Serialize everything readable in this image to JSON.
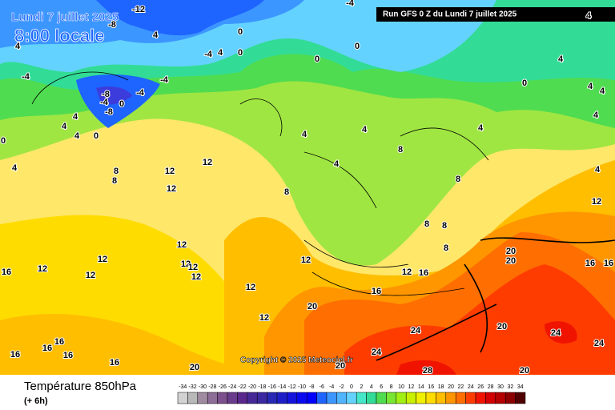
{
  "header": {
    "date": "Lundi 7 juillet 2025",
    "time": "8:00 locale",
    "run": "Run GFS 0 Z du Lundi 7 juillet 2025"
  },
  "copyright": "Copyright © 2025 Meteociel.fr",
  "footer": {
    "title": "Température 850hPa",
    "lead": "(+ 6h)"
  },
  "legend": {
    "values": [
      -34,
      -32,
      -30,
      -28,
      -26,
      -24,
      -22,
      -20,
      -18,
      -16,
      -14,
      -12,
      -10,
      -8,
      -6,
      -4,
      -2,
      0,
      2,
      4,
      6,
      8,
      10,
      12,
      14,
      16,
      18,
      20,
      22,
      24,
      26,
      28,
      30,
      32,
      34
    ],
    "colors": [
      "#d2d2d2",
      "#b9b9b9",
      "#a08ca0",
      "#8c6e96",
      "#7c508c",
      "#6a3c8c",
      "#5a288c",
      "#462896",
      "#3c28a0",
      "#2828b4",
      "#1e1ec8",
      "#1414dc",
      "#0a0af0",
      "#0000ff",
      "#1e64ff",
      "#3c96ff",
      "#50b4ff",
      "#64d2ff",
      "#46e6c8",
      "#32dc96",
      "#50dc50",
      "#78e632",
      "#a0f014",
      "#c8f000",
      "#f0f000",
      "#ffdc00",
      "#ffbe00",
      "#ff9600",
      "#ff6e00",
      "#ff3c00",
      "#f01400",
      "#d20000",
      "#b40000",
      "#8c0000",
      "#500000"
    ]
  },
  "contour_labels": [
    -12,
    -4,
    -8,
    4,
    0,
    -4,
    4,
    0,
    0,
    0,
    4,
    4,
    0,
    4,
    4,
    4,
    -4,
    -4,
    -8,
    -4,
    -8,
    0,
    -4,
    4,
    4,
    4,
    4,
    0,
    4,
    0,
    8,
    8,
    12,
    12,
    12,
    8,
    4,
    4,
    4,
    8,
    4,
    4,
    8,
    12,
    8,
    8,
    8,
    12,
    12,
    12,
    12,
    12,
    12,
    12,
    16,
    12,
    12,
    16,
    16,
    20,
    20,
    16,
    16,
    12,
    20,
    12,
    20,
    24,
    24,
    24,
    16,
    16,
    16,
    16,
    16,
    20,
    24,
    20,
    28,
    20
  ]
}
